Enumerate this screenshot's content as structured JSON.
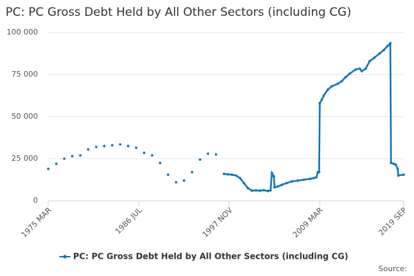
{
  "chart_data": {
    "type": "line",
    "title": "PC: PC Gross Debt Held by All Other Sectors (including CG)",
    "source": "Source:",
    "x": [
      "1975 MAR",
      "1976 MAR",
      "1977 MAR",
      "1978 MAR",
      "1979 MAR",
      "1980 MAR",
      "1981 MAR",
      "1982 MAR",
      "1983 MAR",
      "1984 MAR",
      "1985 MAR",
      "1986 MAR",
      "1987 MAR",
      "1988 MAR",
      "1989 MAR",
      "1990 MAR",
      "1991 MAR",
      "1992 MAR",
      "1993 MAR",
      "1994 MAR",
      "1995 MAR",
      "1996 MAR",
      "1997 MAR",
      "1997 SEP",
      "1998 MAR",
      "1998 SEP",
      "1999 MAR",
      "1999 SEP",
      "2000 MAR",
      "2000 SEP",
      "2001 MAR",
      "2001 SEP",
      "2002 MAR",
      "2002 SEP",
      "2003 JAN",
      "2003 MAR",
      "2003 JUN",
      "2003 JUL",
      "2003 DEC",
      "2004 JUN",
      "2005 JAN",
      "2005 SEP",
      "2006 JUN",
      "2007 MAR",
      "2007 DEC",
      "2008 JUN",
      "2008 OCT",
      "2008 DEC",
      "2009 FEB",
      "2009 MAR",
      "2009 JUN",
      "2009 SEP",
      "2010 MAR",
      "2010 SEP",
      "2011 JUN",
      "2011 DEC",
      "2012 JUN",
      "2012 DEC",
      "2013 SEP",
      "2014 MAR",
      "2014 JUN",
      "2014 DEC",
      "2015 JUN",
      "2016 JAN",
      "2016 SEP",
      "2017 MAR",
      "2017 SEP",
      "2018 JAN",
      "2018 FEB",
      "2018 JUN",
      "2018 SEP",
      "2018 DEC",
      "2019 JAN",
      "2019 SEP"
    ],
    "series": [
      {
        "name": "PC: PC Gross Debt Held by All Other Sectors (including CG)",
        "color": "#0e77b8",
        "values": [
          19000,
          22000,
          25000,
          26500,
          27000,
          30500,
          32000,
          32500,
          33000,
          33500,
          32500,
          31500,
          28500,
          27000,
          22500,
          15500,
          11000,
          12000,
          17000,
          24500,
          28000,
          27500,
          16000,
          15700,
          15500,
          15000,
          13500,
          10500,
          7500,
          6000,
          6200,
          6000,
          6300,
          5800,
          6200,
          16500,
          14500,
          8000,
          8500,
          9500,
          10500,
          11500,
          12000,
          12500,
          13000,
          13500,
          14000,
          17000,
          17000,
          58000,
          60000,
          62500,
          66000,
          68000,
          69500,
          71000,
          73500,
          75500,
          78000,
          78500,
          77000,
          78500,
          83000,
          85000,
          87500,
          89500,
          92000,
          93500,
          22500,
          22000,
          21500,
          19000,
          15000,
          15500
        ]
      }
    ],
    "xlim": [
      "1975 MAR",
      "2019 SEP"
    ],
    "xticks": [
      "1975 MAR",
      "1986 JUL",
      "1997 NOV",
      "2009 MAR",
      "2019 SEP"
    ],
    "ylim": [
      0,
      100000
    ],
    "yticks": [
      0,
      {
        "value": 25000,
        "label": "25 000"
      },
      {
        "value": 50000,
        "label": "50 000"
      },
      {
        "value": 75000,
        "label": "75 000"
      },
      {
        "value": 100000,
        "label": "100 000"
      }
    ],
    "grid": true,
    "legend": "bottom"
  }
}
